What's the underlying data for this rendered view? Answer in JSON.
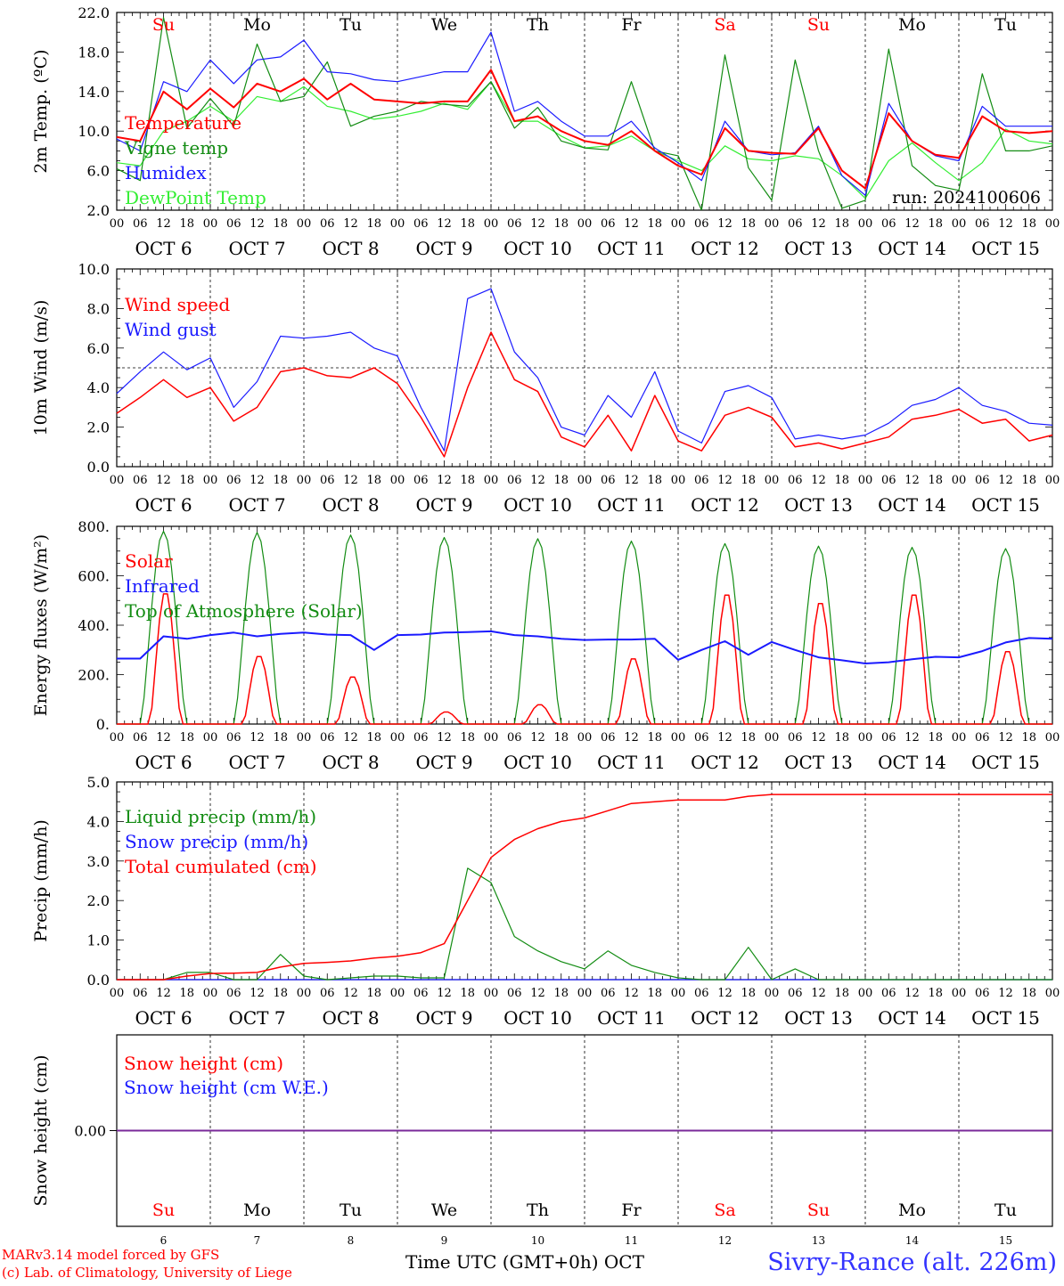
{
  "colors": {
    "red": "#ff0000",
    "green": "#138c13",
    "blue": "#1a1aff",
    "lightgreen": "#33ee33",
    "purple": "#7a2a9a",
    "site": "#3333ff"
  },
  "x_axis": {
    "hour_labels": [
      "00",
      "06",
      "12",
      "18"
    ],
    "final_hour_label": "00",
    "date_labels": [
      "OCT  6",
      "OCT  7",
      "OCT  8",
      "OCT  9",
      "OCT 10",
      "OCT 11",
      "OCT 12",
      "OCT 13",
      "OCT 14",
      "OCT 15"
    ],
    "weekday_labels": [
      "Su",
      "Mo",
      "Tu",
      "We",
      "Th",
      "Fr",
      "Sa",
      "Su",
      "Mo",
      "Tu"
    ],
    "weekend_flags": [
      true,
      false,
      false,
      false,
      false,
      false,
      true,
      true,
      false,
      false
    ],
    "bottom_day_numbers": [
      "6",
      "7",
      "8",
      "9",
      "10",
      "11",
      "12",
      "13",
      "14",
      "15"
    ],
    "x_title": "Time UTC (GMT+0h)",
    "x_unit": "OCT"
  },
  "footer": {
    "model_line": "MARv3.14 model forced by GFS",
    "lab_line": "(c) Lab. of Climatology, University of Liege",
    "site": "Sivry-Rance (alt. 226m)"
  },
  "chart_data": [
    {
      "type": "line",
      "ylabel": "2m Temp. (ºC)",
      "ylim": [
        2,
        22
      ],
      "yticks": [
        "2.0",
        "6.0",
        "10.0",
        "14.0",
        "18.0",
        "22.0"
      ],
      "run_label": "run: 2024100606",
      "x_hours": [
        0,
        6,
        12,
        18,
        24,
        30,
        36,
        42,
        48,
        54,
        60,
        66,
        72,
        78,
        84,
        90,
        96,
        102,
        108,
        114,
        120,
        126,
        132,
        138,
        144,
        150,
        156,
        162,
        168,
        174,
        180,
        186,
        192,
        198,
        204,
        210,
        216,
        222,
        228,
        234,
        240
      ],
      "series": [
        {
          "name": "Temperature",
          "color": "red",
          "values": [
            9.4,
            9.0,
            14.0,
            12.2,
            14.3,
            12.4,
            14.8,
            14.0,
            15.3,
            13.2,
            14.8,
            13.2,
            13.0,
            12.8,
            13.0,
            13.0,
            16.2,
            11.0,
            11.5,
            10.0,
            9.0,
            8.6,
            10.0,
            8.0,
            6.5,
            5.6,
            10.3,
            8.0,
            7.8,
            7.7,
            10.3,
            6.0,
            4.2,
            11.8,
            9.0,
            7.6,
            7.3,
            11.5,
            10.0,
            9.8,
            10.0
          ]
        },
        {
          "name": "Vigne temp",
          "color": "green",
          "values": [
            6.2,
            5.0,
            21.5,
            10.3,
            13.3,
            10.5,
            18.8,
            13.0,
            13.5,
            17.0,
            10.5,
            11.5,
            12.0,
            13.0,
            12.7,
            12.5,
            15.0,
            10.3,
            12.4,
            9.0,
            8.3,
            8.1,
            15.0,
            8.0,
            7.5,
            2.0,
            17.7,
            6.3,
            3.0,
            17.2,
            8.0,
            2.2,
            3.0,
            18.3,
            6.5,
            4.5,
            4.0,
            15.8,
            8.0,
            8.0,
            8.5
          ]
        },
        {
          "name": "Humidex",
          "color": "blue",
          "values": [
            9.2,
            8.0,
            15.0,
            14.0,
            17.2,
            14.8,
            17.2,
            17.5,
            19.2,
            16.0,
            15.8,
            15.2,
            15.0,
            15.5,
            16.0,
            16.0,
            20.0,
            12.0,
            13.0,
            11.0,
            9.5,
            9.5,
            11.0,
            8.3,
            6.8,
            5.0,
            11.0,
            8.0,
            7.6,
            7.8,
            10.5,
            5.5,
            3.5,
            12.8,
            9.0,
            7.5,
            7.0,
            12.5,
            10.5,
            10.5,
            10.5
          ]
        },
        {
          "name": "DewPoint Temp",
          "color": "lightgreen",
          "values": [
            6.8,
            6.5,
            10.0,
            11.0,
            12.5,
            11.0,
            13.5,
            13.0,
            14.5,
            12.5,
            12.0,
            11.2,
            11.5,
            12.0,
            12.8,
            12.2,
            15.0,
            11.0,
            11.0,
            9.5,
            8.3,
            8.5,
            9.5,
            8.0,
            7.0,
            6.0,
            8.5,
            7.2,
            7.0,
            7.5,
            7.2,
            5.5,
            3.2,
            7.0,
            8.8,
            6.8,
            5.0,
            6.8,
            10.2,
            9.0,
            8.7
          ]
        }
      ]
    },
    {
      "type": "line",
      "ylabel": "10m Wind (m/s)",
      "ylim": [
        0,
        10
      ],
      "yticks": [
        "0.0",
        "2.0",
        "4.0",
        "6.0",
        "8.0",
        "10.0"
      ],
      "reference_line": 5.0,
      "x_hours": [
        0,
        6,
        12,
        18,
        24,
        30,
        36,
        42,
        48,
        54,
        60,
        66,
        72,
        78,
        84,
        90,
        96,
        102,
        108,
        114,
        120,
        126,
        132,
        138,
        144,
        150,
        156,
        162,
        168,
        174,
        180,
        186,
        192,
        198,
        204,
        210,
        216,
        222,
        228,
        234,
        240
      ],
      "series": [
        {
          "name": "Wind speed",
          "color": "red",
          "values": [
            2.7,
            3.5,
            4.4,
            3.5,
            4.0,
            2.3,
            3.0,
            4.8,
            5.0,
            4.6,
            4.5,
            5.0,
            4.2,
            2.5,
            0.5,
            4.0,
            6.8,
            4.4,
            3.8,
            1.5,
            1.0,
            2.6,
            0.8,
            3.6,
            1.3,
            0.8,
            2.6,
            3.0,
            2.5,
            1.0,
            1.2,
            0.9,
            1.2,
            1.5,
            2.4,
            2.6,
            2.9,
            2.2,
            2.4,
            1.3,
            1.6
          ]
        },
        {
          "name": "Wind gust",
          "color": "blue",
          "values": [
            3.7,
            4.8,
            5.8,
            4.9,
            5.5,
            3.0,
            4.3,
            6.6,
            6.5,
            6.6,
            6.8,
            6.0,
            5.6,
            3.0,
            0.8,
            8.5,
            9.0,
            5.8,
            4.5,
            2.0,
            1.6,
            3.6,
            2.5,
            4.8,
            1.8,
            1.2,
            3.8,
            4.1,
            3.5,
            1.4,
            1.6,
            1.4,
            1.6,
            2.2,
            3.1,
            3.4,
            4.0,
            3.1,
            2.8,
            2.2,
            2.1
          ]
        }
      ]
    },
    {
      "type": "line",
      "ylabel": "Energy fluxes (W/m²)",
      "ylim": [
        0,
        800
      ],
      "yticks": [
        "0.",
        "200.",
        "400.",
        "600.",
        "800."
      ],
      "days": [
        0,
        1,
        2,
        3,
        4,
        5,
        6,
        7,
        8,
        9
      ],
      "toa_peaks": [
        780,
        775,
        765,
        755,
        750,
        740,
        730,
        720,
        715,
        710
      ],
      "solar_peaks": [
        540,
        280,
        195,
        50,
        80,
        270,
        535,
        500,
        535,
        300
      ],
      "x_hours": [
        0,
        6,
        12,
        18,
        24,
        30,
        36,
        42,
        48,
        54,
        60,
        66,
        72,
        78,
        84,
        90,
        96,
        102,
        108,
        114,
        120,
        126,
        132,
        138,
        144,
        150,
        156,
        162,
        168,
        174,
        180,
        186,
        192,
        198,
        204,
        210,
        216,
        222,
        228,
        234,
        240
      ],
      "infrared_values": [
        265,
        265,
        355,
        345,
        360,
        370,
        355,
        365,
        370,
        362,
        360,
        300,
        360,
        362,
        370,
        372,
        375,
        360,
        355,
        345,
        340,
        342,
        342,
        345,
        260,
        300,
        335,
        280,
        332,
        300,
        270,
        258,
        245,
        250,
        262,
        272,
        270,
        295,
        330,
        348,
        345
      ],
      "series": [
        {
          "name": "Solar",
          "color": "red"
        },
        {
          "name": "Infrared",
          "color": "blue"
        },
        {
          "name": "Top of Atmosphere (Solar)",
          "color": "green"
        }
      ]
    },
    {
      "type": "line",
      "ylabel": "Precip (mm/h)",
      "ylim": [
        0,
        5.5
      ],
      "yticks": [
        "0.0",
        "1.0",
        "2.0",
        "3.0",
        "4.0",
        "5.0"
      ],
      "x_hours": [
        0,
        6,
        12,
        18,
        24,
        30,
        36,
        42,
        48,
        54,
        60,
        66,
        72,
        78,
        84,
        90,
        96,
        102,
        108,
        114,
        120,
        126,
        132,
        138,
        144,
        150,
        156,
        162,
        168,
        174,
        180,
        186,
        192,
        198,
        204,
        210,
        216,
        222,
        228,
        234,
        240
      ],
      "series": [
        {
          "name": "Liquid precip (mm/h)",
          "color": "green",
          "values": [
            0,
            0,
            0,
            0.2,
            0.2,
            0,
            0,
            0.7,
            0.1,
            0,
            0.05,
            0.1,
            0.1,
            0.05,
            0.05,
            3.1,
            2.7,
            1.2,
            0.8,
            0.5,
            0.3,
            0.8,
            0.4,
            0.2,
            0.05,
            0,
            0,
            0.9,
            0,
            0.3,
            0,
            0,
            0,
            0,
            0,
            0,
            0,
            0,
            0,
            0,
            0
          ]
        },
        {
          "name": "Snow precip (mm/h)",
          "color": "blue",
          "values": [
            0,
            0,
            0,
            0,
            0,
            0,
            0,
            0,
            0,
            0,
            0,
            0,
            0,
            0,
            0,
            0,
            0,
            0,
            0,
            0,
            0,
            0,
            0,
            0,
            0,
            0,
            0,
            0,
            0,
            0,
            0,
            0,
            0,
            0,
            0,
            0,
            0,
            0,
            0,
            0,
            0
          ]
        },
        {
          "name": "Total cumulated (cm)",
          "color": "red",
          "values": [
            0,
            0,
            0,
            0.1,
            0.17,
            0.18,
            0.2,
            0.35,
            0.45,
            0.48,
            0.52,
            0.6,
            0.65,
            0.75,
            1.0,
            2.2,
            3.4,
            3.9,
            4.2,
            4.4,
            4.5,
            4.7,
            4.9,
            4.95,
            5.0,
            5.0,
            5.0,
            5.1,
            5.15,
            5.15,
            5.15,
            5.15,
            5.15,
            5.15,
            5.15,
            5.15,
            5.15,
            5.15,
            5.15,
            5.15,
            5.15
          ]
        }
      ]
    },
    {
      "type": "line",
      "ylabel": "Snow height (cm)",
      "ylim": [
        -1,
        1
      ],
      "yticks": [
        "0.00"
      ],
      "series": [
        {
          "name": "Snow height (cm)",
          "color": "red",
          "values": [
            0,
            0
          ]
        },
        {
          "name": "Snow height (cm W.E.)",
          "color": "blue",
          "values": [
            0,
            0
          ]
        }
      ]
    }
  ]
}
